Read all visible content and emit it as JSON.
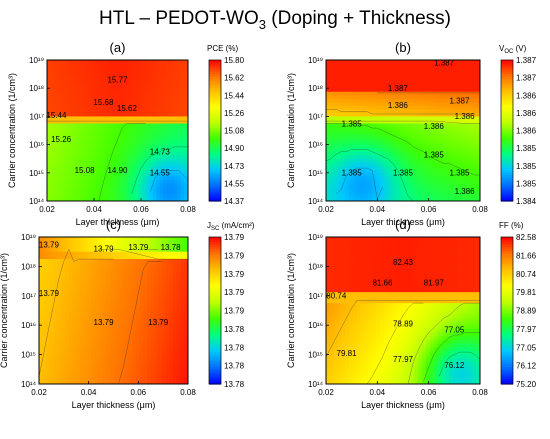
{
  "figure": {
    "title_main": "HTL – PEDOT-WO",
    "title_sub": "3",
    "title_tail": " (Doping + Thickness)"
  },
  "colormap": [
    "#0000ff",
    "#0070ff",
    "#00c8ff",
    "#00ff80",
    "#40ff00",
    "#c0ff00",
    "#ffff00",
    "#ffc000",
    "#ff7000",
    "#ff0000"
  ],
  "chart_data": [
    {
      "type": "heatmap",
      "panel": "(a)",
      "colorbar_label": "PCE (%)",
      "colorbar_label_main": "PCE (%)",
      "colorbar_label_sub": "",
      "colorbar_label_tail": "",
      "colorbar_ticks": [
        "15.80",
        "15.62",
        "15.44",
        "15.26",
        "15.08",
        "14.90",
        "14.73",
        "14.55",
        "14.37"
      ],
      "xlabel": "Layer thickness (μm)",
      "ylabel": "Carrier concentration (1/cm³)",
      "xlim": [
        0.02,
        0.08
      ],
      "xticks": [
        "0.02",
        "0.04",
        "0.06",
        "0.08"
      ],
      "ylim_log10": [
        14,
        19
      ],
      "yticks": [
        "10¹⁴",
        "10¹⁵",
        "10¹⁶",
        "10¹⁷",
        "10¹⁸",
        "10¹⁹"
      ],
      "annotations": [
        {
          "text": "15.77",
          "x": 0.05,
          "log10_y": 18.2
        },
        {
          "text": "15.68",
          "x": 0.044,
          "log10_y": 17.4
        },
        {
          "text": "15.62",
          "x": 0.054,
          "log10_y": 17.2
        },
        {
          "text": "15.44",
          "x": 0.024,
          "log10_y": 16.95
        },
        {
          "text": "15.26",
          "x": 0.026,
          "log10_y": 16.1
        },
        {
          "text": "14.73",
          "x": 0.068,
          "log10_y": 15.65
        },
        {
          "text": "15.08",
          "x": 0.036,
          "log10_y": 15.0
        },
        {
          "text": "14.90",
          "x": 0.05,
          "log10_y": 15.0
        },
        {
          "text": "14.55",
          "x": 0.068,
          "log10_y": 14.9
        }
      ]
    },
    {
      "type": "heatmap",
      "panel": "(b)",
      "colorbar_label": "VOC (V)",
      "colorbar_label_main": "V",
      "colorbar_label_sub": "OC",
      "colorbar_label_tail": " (V)",
      "colorbar_ticks": [
        "1.387",
        "1.387",
        "1.386",
        "1.386",
        "1.386",
        "1.385",
        "1.385",
        "1.385",
        "1.384"
      ],
      "xlabel": "Layer thickness (μm)",
      "ylabel": "Carrier concentration (1/cm³)",
      "xlim": [
        0.02,
        0.08
      ],
      "xticks": [
        "0.02",
        "0.04",
        "0.06",
        "0.08"
      ],
      "ylim_log10": [
        14,
        19
      ],
      "yticks": [
        "10¹⁴",
        "10¹⁵",
        "10¹⁶",
        "10¹⁷",
        "10¹⁸",
        "10¹⁹"
      ],
      "annotations": [
        {
          "text": "1.387",
          "x": 0.066,
          "log10_y": 18.8
        },
        {
          "text": "1.387",
          "x": 0.048,
          "log10_y": 17.9
        },
        {
          "text": "1.387",
          "x": 0.072,
          "log10_y": 17.45
        },
        {
          "text": "1.386",
          "x": 0.048,
          "log10_y": 17.3
        },
        {
          "text": "1.386",
          "x": 0.074,
          "log10_y": 16.9
        },
        {
          "text": "1.385",
          "x": 0.03,
          "log10_y": 16.65
        },
        {
          "text": "1.386",
          "x": 0.062,
          "log10_y": 16.55
        },
        {
          "text": "1.385",
          "x": 0.062,
          "log10_y": 15.55
        },
        {
          "text": "1.385",
          "x": 0.03,
          "log10_y": 14.9
        },
        {
          "text": "1.385",
          "x": 0.05,
          "log10_y": 14.9
        },
        {
          "text": "1.385",
          "x": 0.072,
          "log10_y": 14.9
        },
        {
          "text": "1.386",
          "x": 0.074,
          "log10_y": 14.25
        }
      ]
    },
    {
      "type": "heatmap",
      "panel": "(c)",
      "colorbar_label": "JSC (mA/cm²)",
      "colorbar_label_main": "J",
      "colorbar_label_sub": "SC",
      "colorbar_label_tail": " (mA/cm²)",
      "colorbar_ticks": [
        "13.79",
        "13.79",
        "13.79",
        "13.79",
        "13.79",
        "13.78",
        "13.78",
        "13.78",
        "13.78"
      ],
      "xlabel": "Layer thickness (μm)",
      "ylabel": "Carrier concentration (1/cm³)",
      "xlim": [
        0.02,
        0.08
      ],
      "xticks": [
        "0.02",
        "0.04",
        "0.06",
        "0.08"
      ],
      "ylim_log10": [
        14,
        19
      ],
      "yticks": [
        "10¹⁴",
        "10¹⁵",
        "10¹⁶",
        "10¹⁷",
        "10¹⁸",
        "10¹⁹"
      ],
      "annotations": [
        {
          "text": "13.79",
          "x": 0.024,
          "log10_y": 18.65
        },
        {
          "text": "13.79",
          "x": 0.046,
          "log10_y": 18.5
        },
        {
          "text": "13.79",
          "x": 0.06,
          "log10_y": 18.55
        },
        {
          "text": "13.78",
          "x": 0.073,
          "log10_y": 18.55
        },
        {
          "text": "13.79",
          "x": 0.024,
          "log10_y": 17.0
        },
        {
          "text": "13.79",
          "x": 0.046,
          "log10_y": 16.0
        },
        {
          "text": "13.79",
          "x": 0.068,
          "log10_y": 16.0
        }
      ]
    },
    {
      "type": "heatmap",
      "panel": "(d)",
      "colorbar_label": "FF (%)",
      "colorbar_label_main": "FF (%)",
      "colorbar_label_sub": "",
      "colorbar_label_tail": "",
      "colorbar_ticks": [
        "82.58",
        "81.66",
        "80.74",
        "79.81",
        "78.89",
        "77.97",
        "77.05",
        "76.12",
        "75.20"
      ],
      "xlabel": "Layer thickness (μm)",
      "ylabel": "Carrier concentration (1/cm³)",
      "xlim": [
        0.02,
        0.08
      ],
      "xticks": [
        "0.02",
        "0.04",
        "0.06",
        "0.08"
      ],
      "ylim_log10": [
        14,
        19
      ],
      "yticks": [
        "10¹⁴",
        "10¹⁵",
        "10¹⁶",
        "10¹⁷",
        "10¹⁸",
        "10¹⁹"
      ],
      "annotations": [
        {
          "text": "82.43",
          "x": 0.05,
          "log10_y": 18.05
        },
        {
          "text": "81.66",
          "x": 0.042,
          "log10_y": 17.35
        },
        {
          "text": "81.97",
          "x": 0.062,
          "log10_y": 17.35
        },
        {
          "text": "80.74",
          "x": 0.024,
          "log10_y": 16.9
        },
        {
          "text": "78.89",
          "x": 0.05,
          "log10_y": 15.95
        },
        {
          "text": "77.05",
          "x": 0.07,
          "log10_y": 15.75
        },
        {
          "text": "79.81",
          "x": 0.028,
          "log10_y": 14.95
        },
        {
          "text": "77.97",
          "x": 0.05,
          "log10_y": 14.75
        },
        {
          "text": "76.12",
          "x": 0.07,
          "log10_y": 14.55
        }
      ]
    }
  ]
}
